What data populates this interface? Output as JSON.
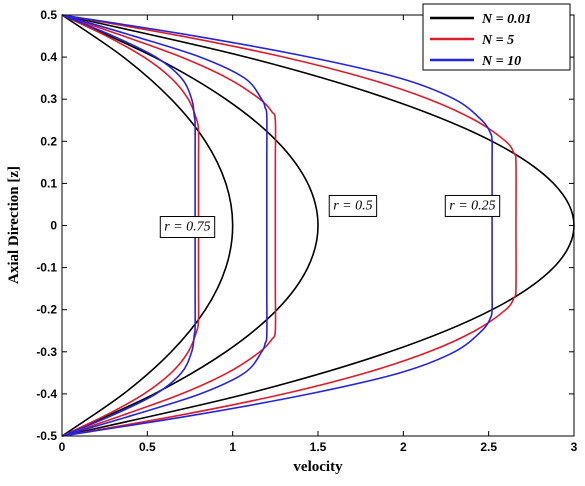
{
  "chart_data": {
    "type": "line",
    "xlabel": "velocity",
    "ylabel": "Axial Direction [z]",
    "xlim": [
      0,
      3
    ],
    "ylim": [
      -0.5,
      0.5
    ],
    "xticks": [
      "0",
      "0.5",
      "1",
      "1.5",
      "2",
      "2.5",
      "3"
    ],
    "yticks": [
      "-0.5",
      "-0.4",
      "-0.3",
      "-0.2",
      "-0.1",
      "0",
      "0.1",
      "0.2",
      "0.3",
      "0.4",
      "0.5"
    ],
    "legend_position": "top-right",
    "series": [
      {
        "name": "N = 0.01",
        "color": "#000000",
        "group": "r = 0.75",
        "z": [
          -0.5,
          -0.4,
          -0.3,
          -0.2,
          -0.1,
          0,
          0.1,
          0.2,
          0.3,
          0.4,
          0.5
        ],
        "x": [
          0,
          0.36,
          0.64,
          0.84,
          0.96,
          1.0,
          0.96,
          0.84,
          0.64,
          0.36,
          0
        ]
      },
      {
        "name": "N = 0.01",
        "color": "#000000",
        "group": "r = 0.5",
        "z": [
          -0.5,
          -0.4,
          -0.3,
          -0.2,
          -0.1,
          0,
          0.1,
          0.2,
          0.3,
          0.4,
          0.5
        ],
        "x": [
          0,
          0.54,
          0.96,
          1.26,
          1.44,
          1.5,
          1.44,
          1.26,
          0.96,
          0.54,
          0
        ]
      },
      {
        "name": "N = 0.01",
        "color": "#000000",
        "group": "r = 0.25",
        "z": [
          -0.5,
          -0.4,
          -0.3,
          -0.2,
          -0.1,
          0,
          0.1,
          0.2,
          0.3,
          0.4,
          0.5
        ],
        "x": [
          0,
          1.08,
          1.92,
          2.52,
          2.88,
          3.0,
          2.88,
          2.52,
          1.92,
          1.08,
          0
        ]
      },
      {
        "name": "N = 5",
        "color": "#dd1c2a",
        "group": "r = 0.75",
        "z": [
          -0.5,
          -0.45,
          -0.4,
          -0.35,
          -0.3,
          -0.25,
          -0.22,
          -0.15,
          0,
          0.15,
          0.22,
          0.25,
          0.3,
          0.35,
          0.4,
          0.45,
          0.5
        ],
        "x": [
          0,
          0.26,
          0.48,
          0.64,
          0.74,
          0.79,
          0.8,
          0.8,
          0.8,
          0.8,
          0.8,
          0.79,
          0.74,
          0.64,
          0.48,
          0.26,
          0
        ]
      },
      {
        "name": "N = 5",
        "color": "#dd1c2a",
        "group": "r = 0.5",
        "z": [
          -0.5,
          -0.45,
          -0.4,
          -0.35,
          -0.3,
          -0.27,
          -0.25,
          -0.15,
          0,
          0.15,
          0.25,
          0.27,
          0.3,
          0.35,
          0.4,
          0.45,
          0.5
        ],
        "x": [
          0,
          0.36,
          0.7,
          0.97,
          1.16,
          1.23,
          1.25,
          1.25,
          1.25,
          1.25,
          1.25,
          1.23,
          1.16,
          0.97,
          0.7,
          0.36,
          0
        ]
      },
      {
        "name": "N = 5",
        "color": "#dd1c2a",
        "group": "r = 0.25",
        "z": [
          -0.5,
          -0.45,
          -0.4,
          -0.35,
          -0.3,
          -0.25,
          -0.2,
          -0.17,
          -0.15,
          0,
          0.15,
          0.17,
          0.2,
          0.25,
          0.3,
          0.35,
          0.4,
          0.45,
          0.5
        ],
        "x": [
          0,
          0.7,
          1.3,
          1.78,
          2.15,
          2.42,
          2.6,
          2.65,
          2.66,
          2.66,
          2.66,
          2.65,
          2.6,
          2.42,
          2.15,
          1.78,
          1.3,
          0.7,
          0
        ]
      },
      {
        "name": "N = 10",
        "color": "#2424dd",
        "group": "r = 0.75",
        "z": [
          -0.5,
          -0.45,
          -0.4,
          -0.35,
          -0.3,
          -0.26,
          -0.24,
          -0.15,
          0,
          0.15,
          0.24,
          0.26,
          0.3,
          0.35,
          0.4,
          0.45,
          0.5
        ],
        "x": [
          0,
          0.3,
          0.55,
          0.7,
          0.76,
          0.775,
          0.78,
          0.78,
          0.78,
          0.78,
          0.78,
          0.775,
          0.76,
          0.7,
          0.55,
          0.3,
          0
        ]
      },
      {
        "name": "N = 10",
        "color": "#2424dd",
        "group": "r = 0.5",
        "z": [
          -0.5,
          -0.45,
          -0.4,
          -0.35,
          -0.3,
          -0.28,
          -0.26,
          -0.15,
          0,
          0.15,
          0.26,
          0.28,
          0.3,
          0.35,
          0.4,
          0.45,
          0.5
        ],
        "x": [
          0,
          0.42,
          0.81,
          1.07,
          1.17,
          1.19,
          1.2,
          1.2,
          1.2,
          1.2,
          1.2,
          1.19,
          1.17,
          1.07,
          0.81,
          0.42,
          0
        ]
      },
      {
        "name": "N = 10",
        "color": "#2424dd",
        "group": "r = 0.25",
        "z": [
          -0.5,
          -0.45,
          -0.4,
          -0.35,
          -0.3,
          -0.25,
          -0.22,
          -0.2,
          -0.15,
          0,
          0.15,
          0.2,
          0.22,
          0.25,
          0.3,
          0.35,
          0.4,
          0.45,
          0.5
        ],
        "x": [
          0,
          0.78,
          1.45,
          1.98,
          2.3,
          2.46,
          2.51,
          2.52,
          2.52,
          2.52,
          2.52,
          2.52,
          2.51,
          2.46,
          2.3,
          1.98,
          1.45,
          0.78,
          0
        ]
      }
    ],
    "legend": [
      {
        "label": "N = 0.01",
        "color": "#000000"
      },
      {
        "label": "N = 5",
        "color": "#dd1c2a"
      },
      {
        "label": "N = 10",
        "color": "#2424dd"
      }
    ],
    "annotations": [
      {
        "text": "r = 0.75",
        "x": 0.57,
        "z": 0
      },
      {
        "text": "r = 0.5",
        "x": 1.56,
        "z": 0.05
      },
      {
        "text": "r = 0.25",
        "x": 2.24,
        "z": 0.05
      }
    ]
  }
}
